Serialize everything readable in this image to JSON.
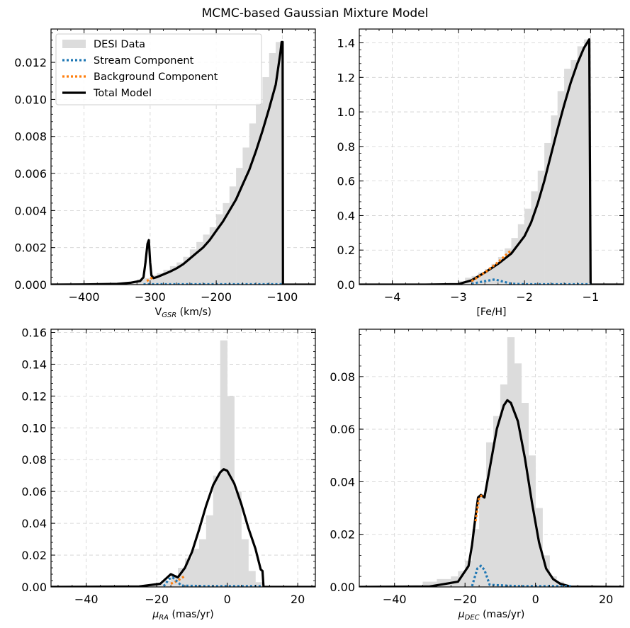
{
  "suptitle": "MCMC-based Gaussian Mixture Model",
  "legend": {
    "location": "upper-left of first panel",
    "entries": [
      {
        "label": "DESI Data",
        "kind": "patch",
        "color": "#dcdcdc"
      },
      {
        "label": "Stream Component",
        "kind": "dotted",
        "color": "#1f77b4"
      },
      {
        "label": "Background Component",
        "kind": "dotted",
        "color": "#ff7f0e"
      },
      {
        "label": "Total Model",
        "kind": "solid",
        "color": "#000000"
      }
    ]
  },
  "colors": {
    "histogram": "#dcdcdc",
    "stream": "#1f77b4",
    "background": "#ff7f0e",
    "total": "#000000",
    "grid": "#d0d0d0"
  },
  "chart_data": [
    {
      "type": "area",
      "xlabel": "V_GSR (km/s)",
      "xlabel_main": "V",
      "xlabel_sub": "GSR",
      "xlabel_tail": " (km/s)",
      "xlim": [
        -450,
        -50
      ],
      "ylim": [
        0,
        0.0138
      ],
      "xticks": [
        -400,
        -300,
        -200,
        -100
      ],
      "xtick_labels": [
        "−400",
        "−300",
        "−200",
        "−100"
      ],
      "yticks": [
        0,
        0.002,
        0.004,
        0.006,
        0.008,
        0.01,
        0.012
      ],
      "ytick_labels": [
        "0.000",
        "0.002",
        "0.004",
        "0.006",
        "0.008",
        "0.010",
        "0.012"
      ],
      "grid": true,
      "hist": {
        "x": [
          -325,
          -315,
          -305,
          -295,
          -285,
          -275,
          -265,
          -255,
          -245,
          -235,
          -225,
          -215,
          -205,
          -195,
          -185,
          -175,
          -165,
          -155,
          -145,
          -135,
          -125,
          -115,
          -105
        ],
        "values": [
          0.0001,
          0.00028,
          0.00035,
          0.00052,
          0.00062,
          0.0008,
          0.001,
          0.0012,
          0.0015,
          0.0019,
          0.0023,
          0.0027,
          0.0031,
          0.0038,
          0.0044,
          0.0053,
          0.0063,
          0.0074,
          0.0087,
          0.0098,
          0.0112,
          0.0125,
          0.0131
        ],
        "width": 10
      },
      "stream_component": {
        "x": [
          -310,
          -300,
          -290,
          -260,
          -220,
          -180,
          -140,
          -100
        ],
        "y": [
          2e-05,
          2e-05,
          2e-05,
          2e-05,
          2e-05,
          2e-05,
          2e-05,
          2e-05
        ]
      },
      "background_component": {
        "x": [
          -305,
          -300,
          -296
        ],
        "y": [
          0.0002,
          0.0003,
          0.0004
        ]
      },
      "total_model": {
        "x": [
          -450,
          -400,
          -350,
          -330,
          -315,
          -310,
          -307,
          -304,
          -302,
          -300,
          -298,
          -295,
          -290,
          -280,
          -270,
          -260,
          -250,
          -240,
          -230,
          -220,
          -210,
          -200,
          -190,
          -180,
          -170,
          -160,
          -150,
          -140,
          -130,
          -120,
          -110,
          -103,
          -101,
          -99.5,
          -99,
          -80,
          -50
        ],
        "y": [
          0,
          1e-05,
          4e-05,
          0.0001,
          0.0002,
          0.0004,
          0.0012,
          0.0022,
          0.0024,
          0.0012,
          0.0005,
          0.00035,
          0.0004,
          0.00055,
          0.0007,
          0.00088,
          0.0011,
          0.0014,
          0.0017,
          0.002,
          0.0024,
          0.0029,
          0.0034,
          0.004,
          0.0046,
          0.0054,
          0.0062,
          0.0072,
          0.0083,
          0.0095,
          0.0108,
          0.0125,
          0.0131,
          0.0131,
          0,
          0,
          0
        ]
      }
    },
    {
      "type": "area",
      "xlabel": "[Fe/H]",
      "xlabel_main": "[Fe/H]",
      "xlabel_sub": "",
      "xlabel_tail": "",
      "xlim": [
        -4.5,
        -0.5
      ],
      "ylim": [
        0,
        1.48
      ],
      "xticks": [
        -4,
        -3,
        -2,
        -1
      ],
      "xtick_labels": [
        "−4",
        "−3",
        "−2",
        "−1"
      ],
      "yticks": [
        0,
        0.2,
        0.4,
        0.6,
        0.8,
        1.0,
        1.2,
        1.4
      ],
      "ytick_labels": [
        "0.0",
        "0.2",
        "0.4",
        "0.6",
        "0.8",
        "1.0",
        "1.2",
        "1.4"
      ],
      "grid": true,
      "hist": {
        "x": [
          -2.95,
          -2.85,
          -2.75,
          -2.65,
          -2.55,
          -2.45,
          -2.35,
          -2.25,
          -2.15,
          -2.05,
          -1.95,
          -1.85,
          -1.75,
          -1.65,
          -1.55,
          -1.45,
          -1.35,
          -1.25,
          -1.15,
          -1.05
        ],
        "values": [
          0.02,
          0.04,
          0.05,
          0.07,
          0.09,
          0.12,
          0.16,
          0.21,
          0.27,
          0.35,
          0.44,
          0.54,
          0.66,
          0.82,
          0.98,
          1.12,
          1.25,
          1.3,
          1.38,
          1.42
        ],
        "width": 0.1
      },
      "stream_component": {
        "x": [
          -2.8,
          -2.6,
          -2.45,
          -2.3,
          -2.2,
          -2.0,
          -1.5,
          -1.0
        ],
        "y": [
          0.005,
          0.02,
          0.03,
          0.015,
          0.005,
          0.002,
          0.002,
          0.002
        ]
      },
      "background_component": {
        "x": [
          -2.8,
          -2.6,
          -2.4,
          -2.2
        ],
        "y": [
          0.02,
          0.07,
          0.13,
          0.2
        ]
      },
      "total_model": {
        "x": [
          -4.5,
          -3.5,
          -3.0,
          -2.8,
          -2.6,
          -2.4,
          -2.2,
          -2.0,
          -1.9,
          -1.8,
          -1.7,
          -1.6,
          -1.5,
          -1.4,
          -1.3,
          -1.2,
          -1.1,
          -1.02,
          -1.0,
          -0.5
        ],
        "y": [
          0,
          0,
          0.003,
          0.025,
          0.07,
          0.12,
          0.18,
          0.28,
          0.36,
          0.47,
          0.6,
          0.75,
          0.9,
          1.04,
          1.17,
          1.28,
          1.37,
          1.42,
          0,
          0
        ]
      }
    },
    {
      "type": "area",
      "xlabel": "μ_RA (mas/yr)",
      "xlabel_main": "μ",
      "xlabel_sub": "RA",
      "xlabel_tail": " (mas/yr)",
      "xlim": [
        -50,
        25
      ],
      "ylim": [
        0,
        0.162
      ],
      "xticks": [
        -40,
        -20,
        0,
        20
      ],
      "xtick_labels": [
        "−40",
        "−20",
        "0",
        "20"
      ],
      "yticks": [
        0,
        0.02,
        0.04,
        0.06,
        0.08,
        0.1,
        0.12,
        0.14,
        0.16
      ],
      "ytick_labels": [
        "0.00",
        "0.02",
        "0.04",
        "0.06",
        "0.08",
        "0.10",
        "0.12",
        "0.14",
        "0.16"
      ],
      "grid": true,
      "hist": {
        "x": [
          -21,
          -19,
          -17,
          -15,
          -13,
          -11,
          -9,
          -7,
          -5,
          -3,
          -1,
          1,
          3,
          5,
          7,
          9
        ],
        "values": [
          0.001,
          0.002,
          0.004,
          0.007,
          0.012,
          0.018,
          0.024,
          0.03,
          0.045,
          0.07,
          0.155,
          0.12,
          0.06,
          0.03,
          0.01,
          0.003
        ],
        "width": 2
      },
      "stream_component": {
        "x": [
          -18,
          -16.5,
          -15.5,
          -14.5,
          -13,
          -5,
          5,
          10
        ],
        "y": [
          0.0005,
          0.005,
          0.006,
          0.004,
          0.0008,
          0.0005,
          0.0005,
          0.0005
        ]
      },
      "background_component": {
        "x": [
          -16,
          -14,
          -12
        ],
        "y": [
          0.002,
          0.004,
          0.007
        ]
      },
      "total_model": {
        "x": [
          -50,
          -25,
          -19,
          -17,
          -16,
          -15,
          -14,
          -12,
          -10,
          -8,
          -6,
          -4,
          -2,
          -1,
          0,
          2,
          4,
          6,
          8,
          9.5,
          10,
          10.3,
          25
        ],
        "y": [
          0,
          0.0003,
          0.002,
          0.006,
          0.008,
          0.007,
          0.006,
          0.012,
          0.022,
          0.036,
          0.051,
          0.064,
          0.072,
          0.074,
          0.073,
          0.065,
          0.052,
          0.037,
          0.024,
          0.011,
          0.01,
          0,
          0
        ]
      }
    },
    {
      "type": "area",
      "xlabel": "μ_DEC (mas/yr)",
      "xlabel_main": "μ",
      "xlabel_sub": "DEC",
      "xlabel_tail": " (mas/yr)",
      "xlim": [
        -50,
        25
      ],
      "ylim": [
        0,
        0.098
      ],
      "xticks": [
        -40,
        -20,
        0,
        20
      ],
      "xtick_labels": [
        "−40",
        "−20",
        "0",
        "20"
      ],
      "yticks": [
        0,
        0.02,
        0.04,
        0.06,
        0.08
      ],
      "ytick_labels": [
        "0.00",
        "0.02",
        "0.04",
        "0.06",
        "0.08"
      ],
      "grid": true,
      "hist": {
        "x": [
          -31,
          -29,
          -27,
          -25,
          -23,
          -21,
          -19,
          -17,
          -15,
          -13,
          -11,
          -9,
          -7,
          -5,
          -3,
          -1,
          1,
          3,
          5,
          7
        ],
        "values": [
          0.002,
          0.002,
          0.003,
          0.003,
          0.004,
          0.006,
          0.01,
          0.022,
          0.035,
          0.055,
          0.065,
          0.077,
          0.095,
          0.085,
          0.07,
          0.05,
          0.03,
          0.012,
          0.004,
          0.002
        ],
        "width": 2
      },
      "stream_component": {
        "x": [
          -18,
          -16.5,
          -15.5,
          -14.5,
          -13,
          -5,
          5,
          10
        ],
        "y": [
          0.0003,
          0.007,
          0.008,
          0.0065,
          0.0008,
          0.0003,
          0.0003,
          0.0003
        ]
      },
      "background_component": {
        "x": [
          -17,
          -16,
          -15
        ],
        "y": [
          0.025,
          0.034,
          0.035
        ]
      },
      "total_model": {
        "x": [
          -50,
          -30,
          -22,
          -19,
          -18,
          -17,
          -16.3,
          -15.5,
          -14.5,
          -13,
          -11,
          -9,
          -8,
          -7,
          -5,
          -3,
          -1,
          1,
          3,
          5,
          7,
          10,
          25
        ],
        "y": [
          0,
          0.0002,
          0.002,
          0.008,
          0.016,
          0.027,
          0.034,
          0.035,
          0.034,
          0.045,
          0.06,
          0.069,
          0.071,
          0.07,
          0.063,
          0.049,
          0.032,
          0.017,
          0.007,
          0.003,
          0.0012,
          0.0001,
          0
        ]
      }
    }
  ]
}
